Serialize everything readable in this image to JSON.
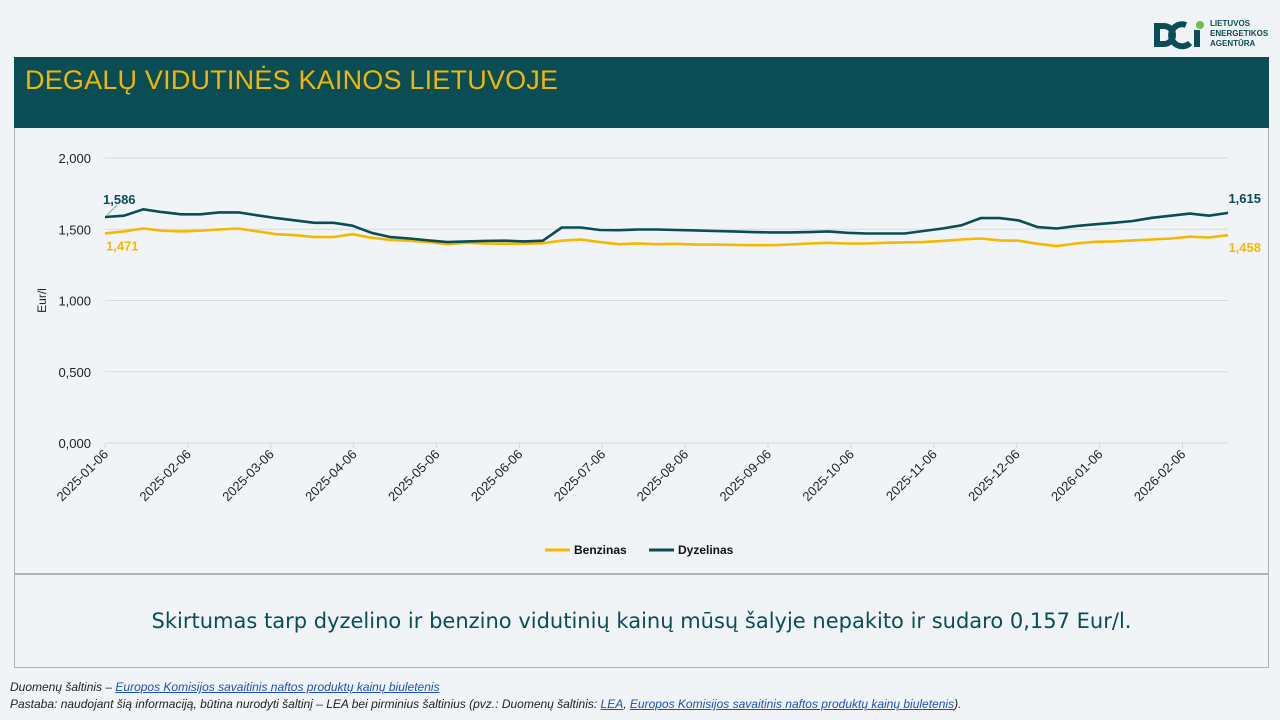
{
  "logo": {
    "line1": "LIETUVOS",
    "line2": "ENERGETIKOS",
    "line3": "AGENTŪRA"
  },
  "header": {
    "title": "DEGALŲ VIDUTINĖS KAINOS LIETUVOJE"
  },
  "summary": {
    "text": "Skirtumas tarp dyzelino ir benzino vidutinių kainų mūsų šalyje nepakito ir sudaro 0,157 Eur/l."
  },
  "footer": {
    "line1_prefix": "Duomenų šaltinis – ",
    "line1_link": "Europos Komisijos savaitinis naftos produktų kainų biuletenis",
    "line2_prefix": "Pastaba: naudojant šią informaciją, būtina nurodyti šaltinį – LEA bei pirminius šaltinius (pvz.: Duomenų šaltinis: ",
    "line2_link1": "LEA",
    "line2_sep": ", ",
    "line2_link2": "Europos Komisijos savaitinis naftos produktų kainų biuletenis",
    "line2_suffix": ")."
  },
  "colors": {
    "benzinas": "#f5b800",
    "dyzelinas": "#0a4d55",
    "header_bg": "#0a4d55",
    "title": "#f2b705"
  },
  "chart_data": {
    "type": "line",
    "ylabel": "Eur/l",
    "ylim": [
      0,
      2
    ],
    "yticks": [
      "0,000",
      "0,500",
      "1,000",
      "1,500",
      "2,000"
    ],
    "ytick_values": [
      0,
      0.5,
      1,
      1.5,
      2
    ],
    "xtick_labels": [
      "2025-01-06",
      "2025-02-06",
      "2025-03-06",
      "2025-04-06",
      "2025-05-06",
      "2025-06-06",
      "2025-07-06",
      "2025-08-06",
      "2025-09-06",
      "2025-10-06",
      "2025-11-06",
      "2025-12-06",
      "2026-01-06",
      "2026-02-06"
    ],
    "legend_position": "bottom",
    "grid": true,
    "start_label": {
      "dyzelinas": "1,586",
      "benzinas": "1,471"
    },
    "end_label": {
      "dyzelinas": "1,615",
      "benzinas": "1,458"
    },
    "series": [
      {
        "name": "Benzinas",
        "values": [
          1.471,
          1.485,
          1.505,
          1.49,
          1.485,
          1.49,
          1.498,
          1.505,
          1.485,
          1.465,
          1.458,
          1.445,
          1.445,
          1.465,
          1.44,
          1.425,
          1.42,
          1.41,
          1.395,
          1.405,
          1.4,
          1.398,
          1.398,
          1.402,
          1.42,
          1.428,
          1.41,
          1.395,
          1.4,
          1.395,
          1.398,
          1.392,
          1.392,
          1.39,
          1.388,
          1.388,
          1.393,
          1.4,
          1.405,
          1.4,
          1.4,
          1.405,
          1.408,
          1.41,
          1.418,
          1.428,
          1.435,
          1.422,
          1.42,
          1.398,
          1.382,
          1.4,
          1.412,
          1.415,
          1.422,
          1.428,
          1.435,
          1.448,
          1.442,
          1.458
        ]
      },
      {
        "name": "Dyzelinas",
        "values": [
          1.586,
          1.595,
          1.64,
          1.62,
          1.605,
          1.605,
          1.618,
          1.618,
          1.598,
          1.578,
          1.562,
          1.545,
          1.545,
          1.525,
          1.475,
          1.445,
          1.435,
          1.422,
          1.41,
          1.415,
          1.418,
          1.42,
          1.415,
          1.42,
          1.512,
          1.512,
          1.495,
          1.493,
          1.498,
          1.498,
          1.495,
          1.492,
          1.488,
          1.485,
          1.48,
          1.478,
          1.478,
          1.48,
          1.485,
          1.475,
          1.47,
          1.47,
          1.47,
          1.488,
          1.505,
          1.528,
          1.578,
          1.578,
          1.562,
          1.515,
          1.505,
          1.522,
          1.535,
          1.545,
          1.558,
          1.58,
          1.595,
          1.61,
          1.595,
          1.615
        ]
      }
    ]
  }
}
